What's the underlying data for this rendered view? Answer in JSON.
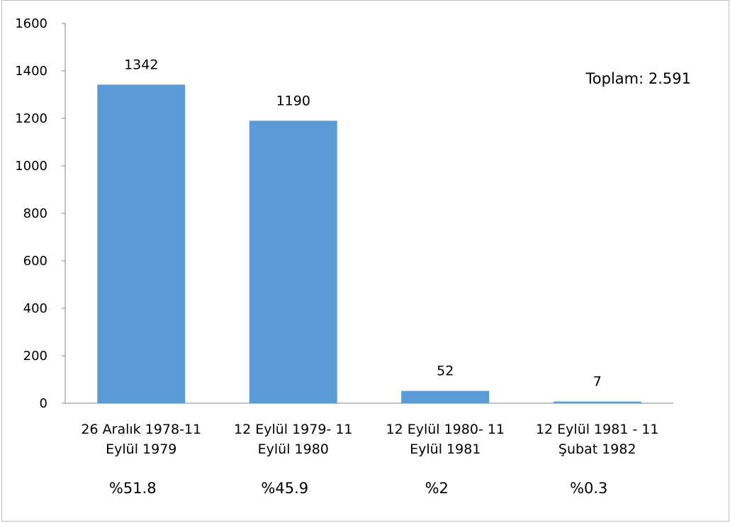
{
  "chart_data": {
    "type": "bar",
    "categories": [
      [
        "26 Aralık 1978-11",
        "Eylül 1979"
      ],
      [
        "12 Eylül 1979- 11",
        "Eylül 1980"
      ],
      [
        "12 Eylül 1980- 11",
        "Eylül 1981"
      ],
      [
        "12 Eylül 1981 - 11",
        "Şubat 1982"
      ]
    ],
    "values": [
      1342,
      1190,
      52,
      7
    ],
    "data_labels": [
      "1342",
      "1190",
      "52",
      "7"
    ],
    "percent_labels": [
      "%51.8",
      "%45.9",
      "%2",
      "%0.3"
    ],
    "total_label": "Toplam: 2.591",
    "ylim": [
      0,
      1600
    ],
    "yticks": [
      0,
      200,
      400,
      600,
      800,
      1000,
      1200,
      1400,
      1600
    ],
    "grid": false,
    "legend": "none",
    "bar_color": "#5b9bd5"
  }
}
